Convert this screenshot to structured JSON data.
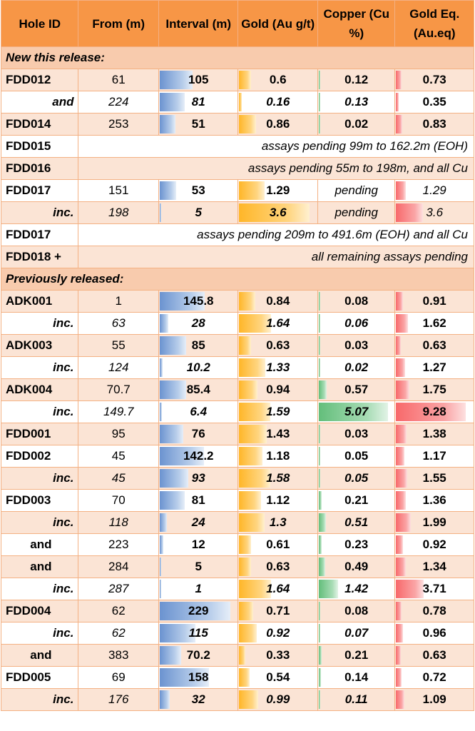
{
  "headers": [
    "Hole ID",
    "From (m)",
    "Interval (m)",
    "Gold (Au g/t)",
    "Copper (Cu %)",
    "Gold Eq. (Au.eq)"
  ],
  "colors": {
    "header": "#f79646",
    "section": "#f8cbad",
    "odd_row": "#fbe4d5",
    "border": "#f4b183"
  },
  "scale_max": {
    "interval": 229,
    "gold": 3.6,
    "copper": 5.07,
    "goldeq": 9.28
  },
  "sections": [
    {
      "title": "New this release:",
      "rows": [
        {
          "id": "FDD012",
          "from": "61",
          "interval": "105",
          "gold": "0.6",
          "copper": "0.12",
          "goldeq": "0.73"
        },
        {
          "id": "and",
          "sub": true,
          "from": "224",
          "interval": "81",
          "gold": "0.16",
          "copper": "0.13",
          "goldeq": "0.35"
        },
        {
          "id": "FDD014",
          "from": "253",
          "interval": "51",
          "gold": "0.86",
          "copper": "0.02",
          "goldeq": "0.83"
        },
        {
          "id": "FDD015",
          "note": "assays pending 99m to 162.2m (EOH)"
        },
        {
          "id": "FDD016",
          "note": "assays pending 55m to 198m, and all Cu"
        },
        {
          "id": "FDD017",
          "from": "151",
          "interval": "53",
          "gold": "1.29",
          "copper": "pending",
          "goldeq": "1.29",
          "eq_value": 1.29
        },
        {
          "id": "inc.",
          "sub": true,
          "from": "198",
          "interval": "5",
          "gold": "3.6",
          "copper": "pending",
          "goldeq": "3.6",
          "eq_value": 3.6
        },
        {
          "id": "FDD017",
          "note": "assays pending 209m to 491.6m (EOH) and all Cu"
        },
        {
          "id": "FDD018 +",
          "note": "all remaining assays pending"
        }
      ]
    },
    {
      "title": "Previously released:",
      "rows": [
        {
          "id": "ADK001",
          "from": "1",
          "interval": "145.8",
          "gold": "0.84",
          "copper": "0.08",
          "goldeq": "0.91"
        },
        {
          "id": "inc.",
          "sub": true,
          "from": "63",
          "interval": "28",
          "gold": "1.64",
          "copper": "0.06",
          "goldeq": "1.62"
        },
        {
          "id": "ADK003",
          "from": "55",
          "interval": "85",
          "gold": "0.63",
          "copper": "0.03",
          "goldeq": "0.63"
        },
        {
          "id": "inc.",
          "sub": true,
          "from": "124",
          "interval": "10.2",
          "gold": "1.33",
          "copper": "0.02",
          "goldeq": "1.27"
        },
        {
          "id": "ADK004",
          "from": "70.7",
          "interval": "85.4",
          "gold": "0.94",
          "copper": "0.57",
          "goldeq": "1.75"
        },
        {
          "id": "inc.",
          "sub": true,
          "from": "149.7",
          "interval": "6.4",
          "gold": "1.59",
          "copper": "5.07",
          "goldeq": "9.28"
        },
        {
          "id": "FDD001",
          "from": "95",
          "interval": "76",
          "gold": "1.43",
          "copper": "0.03",
          "goldeq": "1.38"
        },
        {
          "id": "FDD002",
          "from": "45",
          "interval": "142.2",
          "gold": "1.18",
          "copper": "0.05",
          "goldeq": "1.17"
        },
        {
          "id": "inc.",
          "sub": true,
          "from": "45",
          "interval": "93",
          "gold": "1.58",
          "copper": "0.05",
          "goldeq": "1.55"
        },
        {
          "id": "FDD003",
          "from": "70",
          "interval": "81",
          "gold": "1.12",
          "copper": "0.21",
          "goldeq": "1.36"
        },
        {
          "id": "inc.",
          "sub": true,
          "from": "118",
          "interval": "24",
          "gold": "1.3",
          "copper": "0.51",
          "goldeq": "1.99"
        },
        {
          "id": "and",
          "and_plain": true,
          "from": "223",
          "interval": "12",
          "gold": "0.61",
          "copper": "0.23",
          "goldeq": "0.92"
        },
        {
          "id": "and",
          "and_plain": true,
          "from": "284",
          "interval": "5",
          "gold": "0.63",
          "copper": "0.49",
          "goldeq": "1.34"
        },
        {
          "id": "inc.",
          "sub": true,
          "from": "287",
          "interval": "1",
          "gold": "1.64",
          "copper": "1.42",
          "goldeq": "3.71"
        },
        {
          "id": "FDD004",
          "from": "62",
          "interval": "229",
          "gold": "0.71",
          "copper": "0.08",
          "goldeq": "0.78"
        },
        {
          "id": "inc.",
          "sub": true,
          "from": "62",
          "interval": "115",
          "gold": "0.92",
          "copper": "0.07",
          "goldeq": "0.96"
        },
        {
          "id": "and",
          "and_plain": true,
          "from": "383",
          "interval": "70.2",
          "gold": "0.33",
          "copper": "0.21",
          "goldeq": "0.63"
        },
        {
          "id": "FDD005",
          "from": "69",
          "interval": "158",
          "gold": "0.54",
          "copper": "0.14",
          "goldeq": "0.72"
        },
        {
          "id": "inc.",
          "sub": true,
          "from": "176",
          "interval": "32",
          "gold": "0.99",
          "copper": "0.11",
          "goldeq": "1.09"
        }
      ]
    }
  ]
}
